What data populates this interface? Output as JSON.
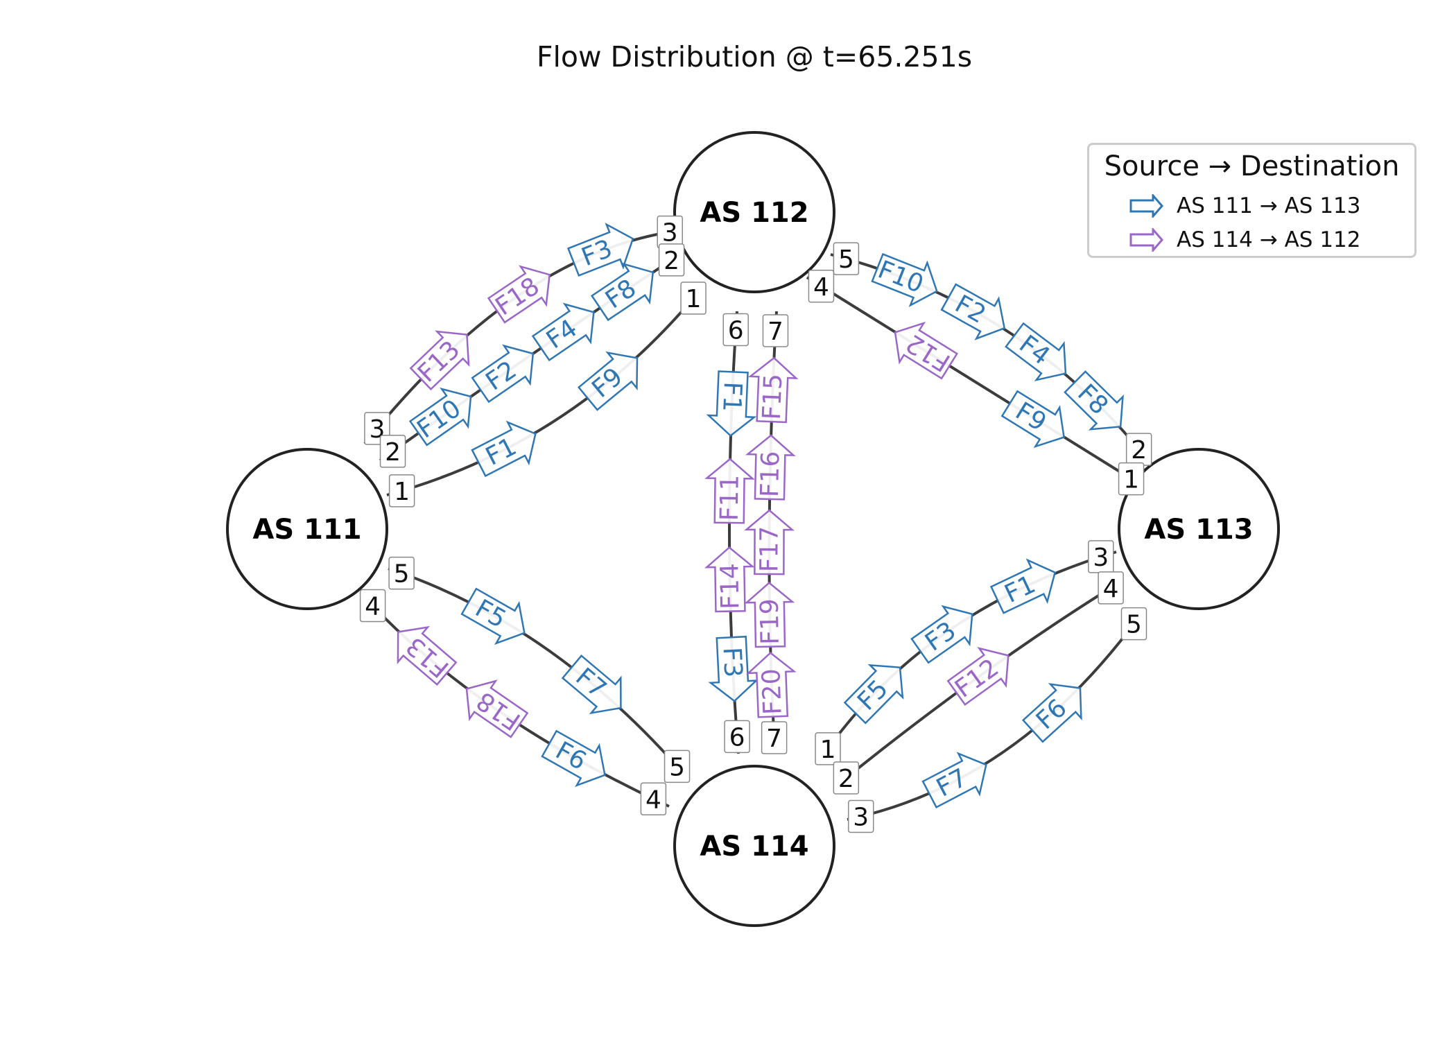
{
  "title": "Flow Distribution @ t=65.251s",
  "colors": {
    "blue": "#2f77b4",
    "purple": "#9a66c8",
    "edge": "#3c3c3c",
    "node_stroke": "#222222"
  },
  "nodes": [
    {
      "id": "AS111",
      "label": "AS 111"
    },
    {
      "id": "AS112",
      "label": "AS 112"
    },
    {
      "id": "AS113",
      "label": "AS 113"
    },
    {
      "id": "AS114",
      "label": "AS 114"
    }
  ],
  "links": [
    {
      "from": "AS111",
      "to": "AS112",
      "ports": [
        "3",
        "3"
      ],
      "flows": [
        {
          "label": "F13",
          "cls": "AS114-AS112",
          "dir": "fwd"
        },
        {
          "label": "F18",
          "cls": "AS114-AS112",
          "dir": "fwd"
        },
        {
          "label": "F3",
          "cls": "AS111-AS113",
          "dir": "fwd"
        }
      ]
    },
    {
      "from": "AS111",
      "to": "AS112",
      "ports": [
        "2",
        "2"
      ],
      "flows": [
        {
          "label": "F10",
          "cls": "AS111-AS113",
          "dir": "fwd"
        },
        {
          "label": "F2",
          "cls": "AS111-AS113",
          "dir": "fwd"
        },
        {
          "label": "F4",
          "cls": "AS111-AS113",
          "dir": "fwd"
        },
        {
          "label": "F8",
          "cls": "AS111-AS113",
          "dir": "fwd"
        }
      ]
    },
    {
      "from": "AS111",
      "to": "AS112",
      "ports": [
        "1",
        "1"
      ],
      "flows": [
        {
          "label": "F1",
          "cls": "AS111-AS113",
          "dir": "fwd"
        },
        {
          "label": "F9",
          "cls": "AS111-AS113",
          "dir": "fwd"
        }
      ]
    },
    {
      "from": "AS112",
      "to": "AS113",
      "ports": [
        "5",
        "2"
      ],
      "flows": [
        {
          "label": "F10",
          "cls": "AS111-AS113",
          "dir": "fwd"
        },
        {
          "label": "F2",
          "cls": "AS111-AS113",
          "dir": "fwd"
        },
        {
          "label": "F4",
          "cls": "AS111-AS113",
          "dir": "fwd"
        },
        {
          "label": "F8",
          "cls": "AS111-AS113",
          "dir": "fwd"
        }
      ]
    },
    {
      "from": "AS112",
      "to": "AS113",
      "ports": [
        "4",
        "1"
      ],
      "flows": [
        {
          "label": "F12",
          "cls": "AS114-AS112",
          "dir": "rev"
        },
        {
          "label": "F9",
          "cls": "AS111-AS113",
          "dir": "fwd"
        }
      ]
    },
    {
      "from": "AS112",
      "to": "AS114",
      "ports": [
        "6",
        "6"
      ],
      "flows": [
        {
          "label": "F1",
          "cls": "AS111-AS113",
          "dir": "fwd"
        },
        {
          "label": "F11",
          "cls": "AS114-AS112",
          "dir": "rev"
        },
        {
          "label": "F14",
          "cls": "AS114-AS112",
          "dir": "rev"
        },
        {
          "label": "F3",
          "cls": "AS111-AS113",
          "dir": "fwd"
        }
      ]
    },
    {
      "from": "AS112",
      "to": "AS114",
      "ports": [
        "7",
        "7"
      ],
      "flows": [
        {
          "label": "F15",
          "cls": "AS114-AS112",
          "dir": "rev"
        },
        {
          "label": "F16",
          "cls": "AS114-AS112",
          "dir": "rev"
        },
        {
          "label": "F17",
          "cls": "AS114-AS112",
          "dir": "rev"
        },
        {
          "label": "F19",
          "cls": "AS114-AS112",
          "dir": "rev"
        },
        {
          "label": "F20",
          "cls": "AS114-AS112",
          "dir": "rev"
        }
      ]
    },
    {
      "from": "AS111",
      "to": "AS114",
      "ports": [
        "5",
        "5"
      ],
      "flows": [
        {
          "label": "F5",
          "cls": "AS111-AS113",
          "dir": "fwd"
        },
        {
          "label": "F7",
          "cls": "AS111-AS113",
          "dir": "fwd"
        }
      ]
    },
    {
      "from": "AS111",
      "to": "AS114",
      "ports": [
        "4",
        "4"
      ],
      "flows": [
        {
          "label": "F13",
          "cls": "AS114-AS112",
          "dir": "rev"
        },
        {
          "label": "F18",
          "cls": "AS114-AS112",
          "dir": "rev"
        },
        {
          "label": "F6",
          "cls": "AS111-AS113",
          "dir": "fwd"
        }
      ]
    },
    {
      "from": "AS114",
      "to": "AS113",
      "ports": [
        "1",
        "3"
      ],
      "flows": [
        {
          "label": "F5",
          "cls": "AS111-AS113",
          "dir": "fwd"
        },
        {
          "label": "F3",
          "cls": "AS111-AS113",
          "dir": "fwd"
        },
        {
          "label": "F1",
          "cls": "AS111-AS113",
          "dir": "fwd"
        }
      ]
    },
    {
      "from": "AS114",
      "to": "AS113",
      "ports": [
        "2",
        "4"
      ],
      "flows": [
        {
          "label": "F12",
          "cls": "AS114-AS112",
          "dir": "fwd"
        }
      ]
    },
    {
      "from": "AS114",
      "to": "AS113",
      "ports": [
        "3",
        "5"
      ],
      "flows": [
        {
          "label": "F7",
          "cls": "AS111-AS113",
          "dir": "fwd"
        },
        {
          "label": "F6",
          "cls": "AS111-AS113",
          "dir": "fwd"
        }
      ]
    }
  ],
  "legend": {
    "title": "Source → Destination",
    "entries": [
      {
        "label": "AS 111 → AS 113",
        "color": "#2f77b4"
      },
      {
        "label": "AS 114 → AS 112",
        "color": "#9a66c8"
      }
    ]
  }
}
